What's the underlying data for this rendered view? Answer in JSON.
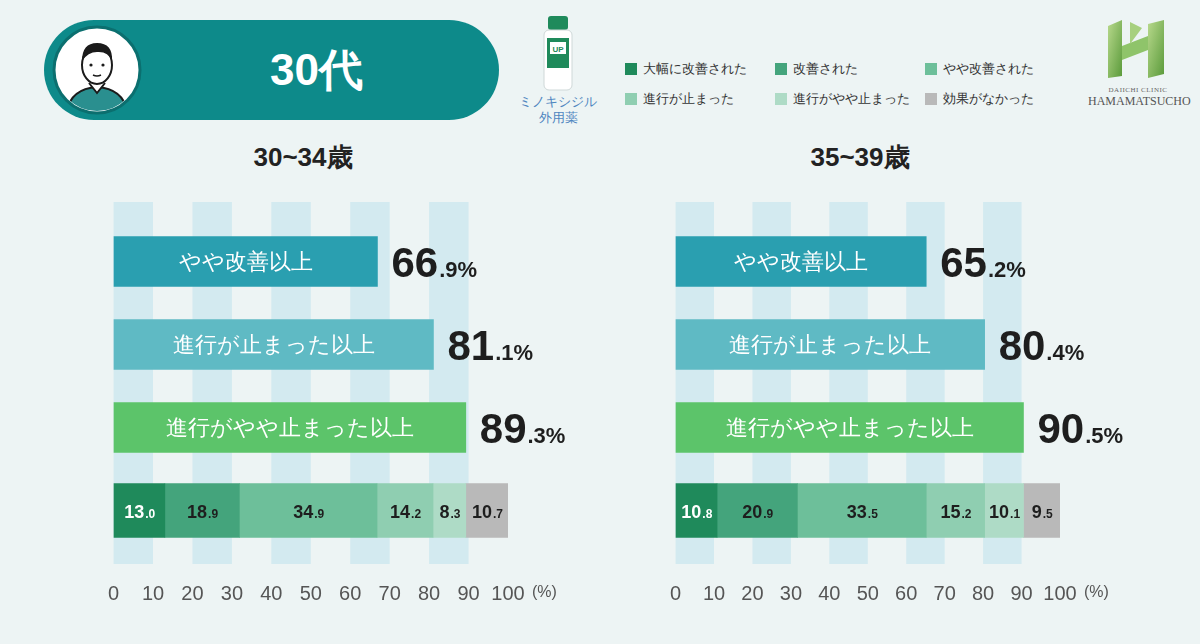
{
  "header": {
    "title": "30代"
  },
  "product": {
    "badge": "UP",
    "name": "ミノキシジル外用薬"
  },
  "logo": {
    "line1": "DAIICHI CLINIC",
    "line2": "HAMAMATSUCHO"
  },
  "chart_data": [
    {
      "type": "bar",
      "title": "30~34歳",
      "orientation": "horizontal",
      "stacked": true,
      "data_labels": true,
      "tick_labels": "x",
      "grid": true,
      "legend": "top",
      "categories": [
        "やや改善以上",
        "進行が止まった以上",
        "進行がやや止まった以上",
        null
      ],
      "xlim": [
        0,
        100
      ],
      "xticks": [
        0,
        10,
        20,
        30,
        40,
        50,
        60,
        70,
        80,
        90,
        100
      ],
      "xlabel": "(%)",
      "series": [
        {
          "colors": [
            "#2a9fb0",
            "#5fbac4",
            "#5cc46a"
          ],
          "values": [
            66.9,
            81.1,
            89.3,
            null
          ],
          "value_labels": [
            "66.9%",
            "81.1%",
            "89.3%",
            null
          ]
        },
        {
          "name": "大幅に改善された",
          "color": "#1f8a5b",
          "values": [
            null,
            null,
            null,
            13.0
          ],
          "value_labels": [
            null,
            null,
            null,
            "13.0"
          ]
        },
        {
          "name": "改善された",
          "color": "#44a47c",
          "values": [
            null,
            null,
            null,
            18.9
          ],
          "value_labels": [
            null,
            null,
            null,
            "18.9"
          ]
        },
        {
          "name": "やや改善された",
          "color": "#6dbf9a",
          "values": [
            null,
            null,
            null,
            34.9
          ],
          "value_labels": [
            null,
            null,
            null,
            "34.9"
          ]
        },
        {
          "name": "進行が止まった",
          "color": "#8fceb1",
          "values": [
            null,
            null,
            null,
            14.2
          ],
          "value_labels": [
            null,
            null,
            null,
            "14.2"
          ]
        },
        {
          "name": "進行がやや止まった",
          "color": "#aedbc6",
          "values": [
            null,
            null,
            null,
            8.3
          ],
          "value_labels": [
            null,
            null,
            null,
            "8.3"
          ]
        },
        {
          "name": "効果がなかった",
          "color": "#b9b9b9",
          "values": [
            null,
            null,
            null,
            10.7
          ],
          "value_labels": [
            null,
            null,
            null,
            "10.7"
          ]
        }
      ]
    },
    {
      "type": "bar",
      "title": "35~39歳",
      "orientation": "horizontal",
      "stacked": true,
      "data_labels": true,
      "tick_labels": "x",
      "grid": true,
      "legend": "top",
      "categories": [
        "やや改善以上",
        "進行が止まった以上",
        "進行がやや止まった以上",
        null
      ],
      "xlim": [
        0,
        100
      ],
      "xticks": [
        0,
        10,
        20,
        30,
        40,
        50,
        60,
        70,
        80,
        90,
        100
      ],
      "xlabel": "(%)",
      "series": [
        {
          "colors": [
            "#2a9fb0",
            "#5fbac4",
            "#5cc46a"
          ],
          "values": [
            65.2,
            80.4,
            90.5,
            null
          ],
          "value_labels": [
            "65.2%",
            "80.4%",
            "90.5%",
            null
          ]
        },
        {
          "name": "大幅に改善された",
          "color": "#1f8a5b",
          "values": [
            null,
            null,
            null,
            10.8
          ],
          "value_labels": [
            null,
            null,
            null,
            "10.8"
          ]
        },
        {
          "name": "改善された",
          "color": "#44a47c",
          "values": [
            null,
            null,
            null,
            20.9
          ],
          "value_labels": [
            null,
            null,
            null,
            "20.9"
          ]
        },
        {
          "name": "やや改善された",
          "color": "#6dbf9a",
          "values": [
            null,
            null,
            null,
            33.5
          ],
          "value_labels": [
            null,
            null,
            null,
            "33.5"
          ]
        },
        {
          "name": "進行が止まった",
          "color": "#8fceb1",
          "values": [
            null,
            null,
            null,
            15.2
          ],
          "value_labels": [
            null,
            null,
            null,
            "15.2"
          ]
        },
        {
          "name": "進行がやや止まった",
          "color": "#aedbc6",
          "values": [
            null,
            null,
            null,
            10.1
          ],
          "value_labels": [
            null,
            null,
            null,
            "10.1"
          ]
        },
        {
          "name": "効果がなかった",
          "color": "#b9b9b9",
          "values": [
            null,
            null,
            null,
            9.5
          ],
          "value_labels": [
            null,
            null,
            null,
            "9.5"
          ]
        }
      ]
    }
  ]
}
